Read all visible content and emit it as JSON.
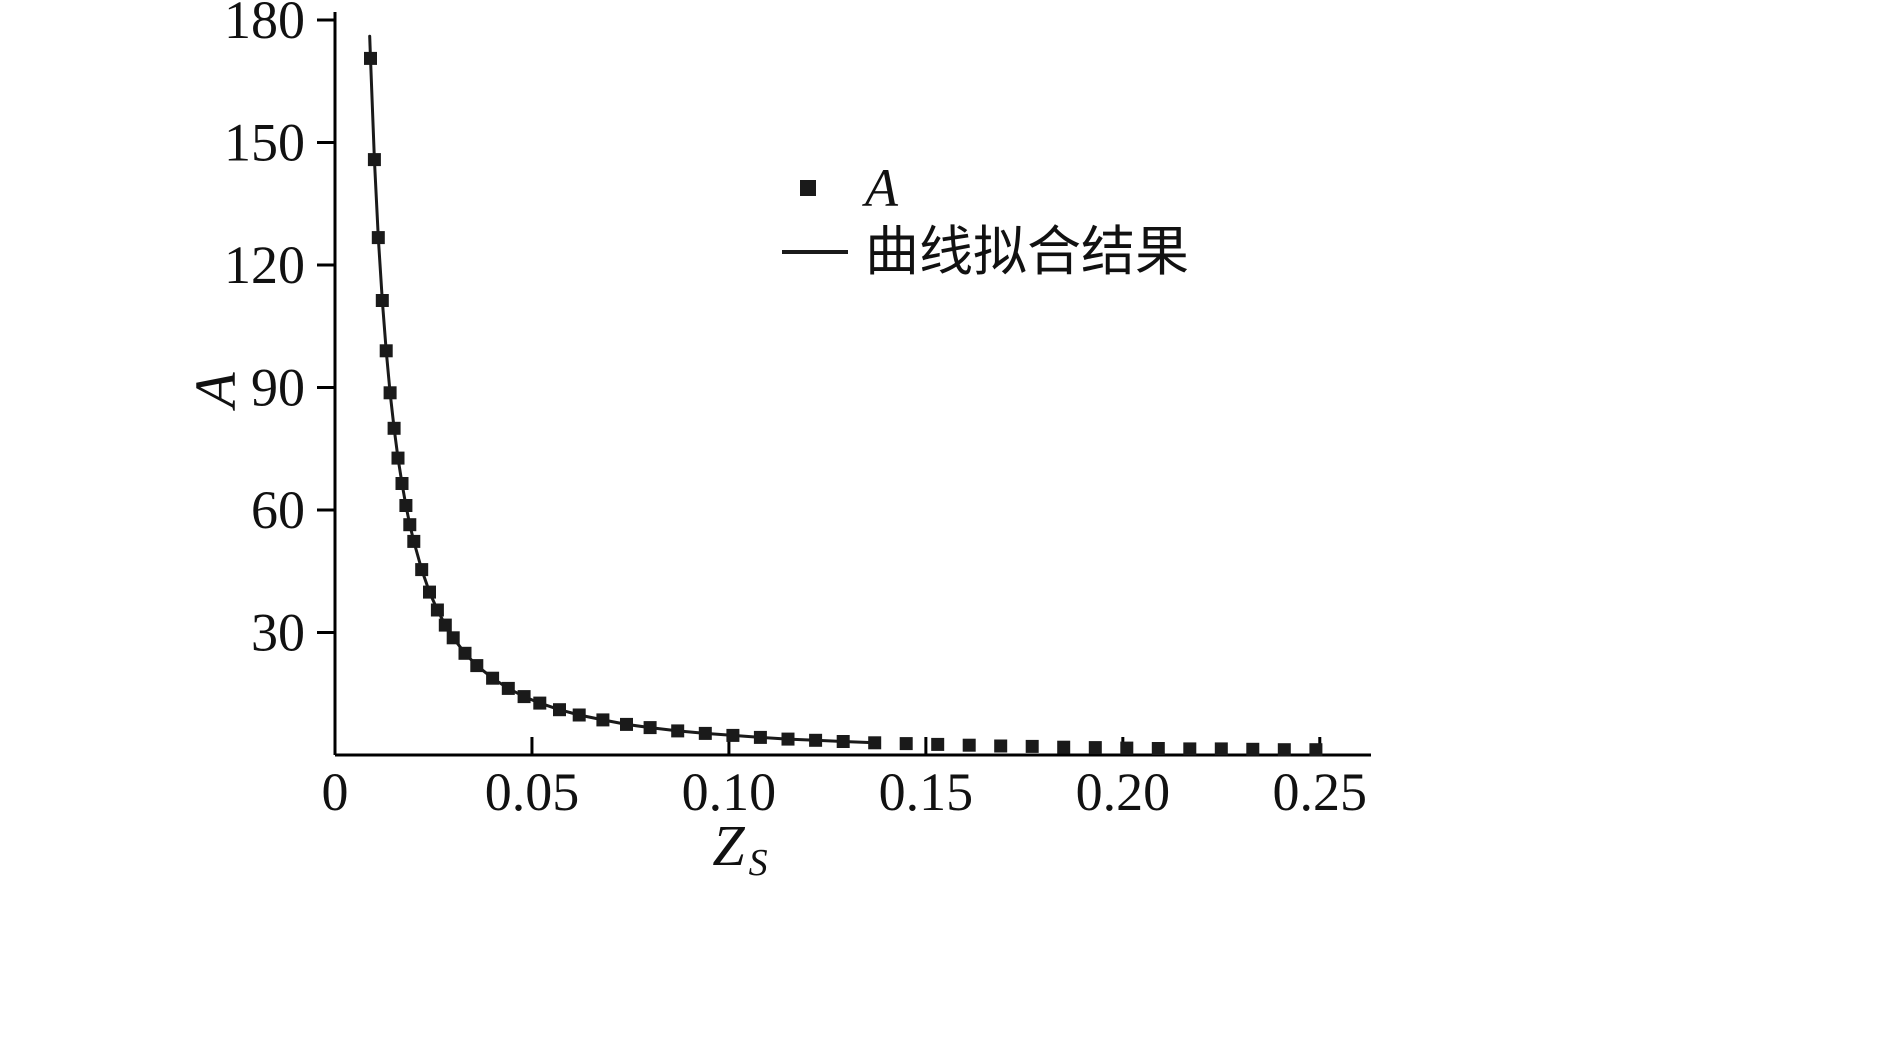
{
  "chart_data": {
    "type": "scatter",
    "title": "",
    "xlabel_main": "Z",
    "xlabel_sub": "S",
    "ylabel": "A",
    "xlim": [
      0,
      0.263
    ],
    "ylim": [
      0,
      180
    ],
    "grid": false,
    "legend_position": "upper-center-right-inside",
    "axis_color": "#000000",
    "marker_color": "#1a1a1a",
    "line_color": "#1a1a1a",
    "origin_label": "0",
    "x_ticks": [
      0.05,
      0.1,
      0.15,
      0.2,
      0.25
    ],
    "x_tick_labels": [
      "0.05",
      "0.10",
      "0.15",
      "0.20",
      "0.25"
    ],
    "y_ticks": [
      30,
      60,
      90,
      120,
      150,
      180
    ],
    "y_tick_labels": [
      "30",
      "60",
      "90",
      "120",
      "150",
      "180"
    ],
    "legend": [
      {
        "label": "A",
        "type": "marker"
      },
      {
        "label": "曲线拟合结果",
        "type": "line"
      }
    ],
    "series": [
      {
        "name": "A",
        "type": "scatter",
        "marker": "square",
        "x": [
          0.009,
          0.01,
          0.011,
          0.012,
          0.013,
          0.014,
          0.015,
          0.016,
          0.017,
          0.018,
          0.019,
          0.02,
          0.022,
          0.024,
          0.026,
          0.028,
          0.03,
          0.033,
          0.036,
          0.04,
          0.044,
          0.048,
          0.052,
          0.057,
          0.062,
          0.068,
          0.074,
          0.08,
          0.087,
          0.094,
          0.101,
          0.108,
          0.115,
          0.122,
          0.129,
          0.137,
          0.145,
          0.153,
          0.161,
          0.169,
          0.177,
          0.185,
          0.193,
          0.201,
          0.209,
          0.217,
          0.225,
          0.233,
          0.241,
          0.249
        ],
        "y": [
          170.6,
          145.8,
          126.7,
          111.3,
          99.0,
          88.7,
          80.0,
          72.7,
          66.5,
          61.1,
          56.4,
          52.3,
          45.4,
          39.9,
          35.5,
          31.8,
          28.7,
          24.9,
          21.9,
          18.8,
          16.3,
          14.3,
          12.7,
          11.1,
          9.8,
          8.6,
          7.5,
          6.7,
          5.9,
          5.3,
          4.8,
          4.3,
          3.9,
          3.6,
          3.3,
          3.0,
          2.8,
          2.6,
          2.4,
          2.2,
          2.1,
          1.9,
          1.8,
          1.7,
          1.6,
          1.5,
          1.5,
          1.4,
          1.3,
          1.3
        ]
      },
      {
        "name": "曲线拟合结果",
        "type": "line",
        "x": [
          0.0088,
          0.009,
          0.01,
          0.011,
          0.012,
          0.013,
          0.014,
          0.015,
          0.016,
          0.017,
          0.018,
          0.019,
          0.02,
          0.022,
          0.024,
          0.026,
          0.028,
          0.03,
          0.033,
          0.036,
          0.04,
          0.044,
          0.048,
          0.052,
          0.057,
          0.062,
          0.068,
          0.074,
          0.08,
          0.087,
          0.094,
          0.101,
          0.108,
          0.115,
          0.122,
          0.129,
          0.137
        ],
        "y": [
          176.0,
          170.6,
          145.8,
          126.7,
          111.3,
          99.0,
          88.7,
          80.0,
          72.7,
          66.5,
          61.1,
          56.4,
          52.3,
          45.4,
          39.9,
          35.5,
          31.8,
          28.7,
          24.9,
          21.9,
          18.8,
          16.3,
          14.3,
          12.7,
          11.1,
          9.8,
          8.6,
          7.5,
          6.7,
          5.9,
          5.3,
          4.8,
          4.3,
          3.9,
          3.6,
          3.3,
          3.0
        ]
      }
    ]
  }
}
